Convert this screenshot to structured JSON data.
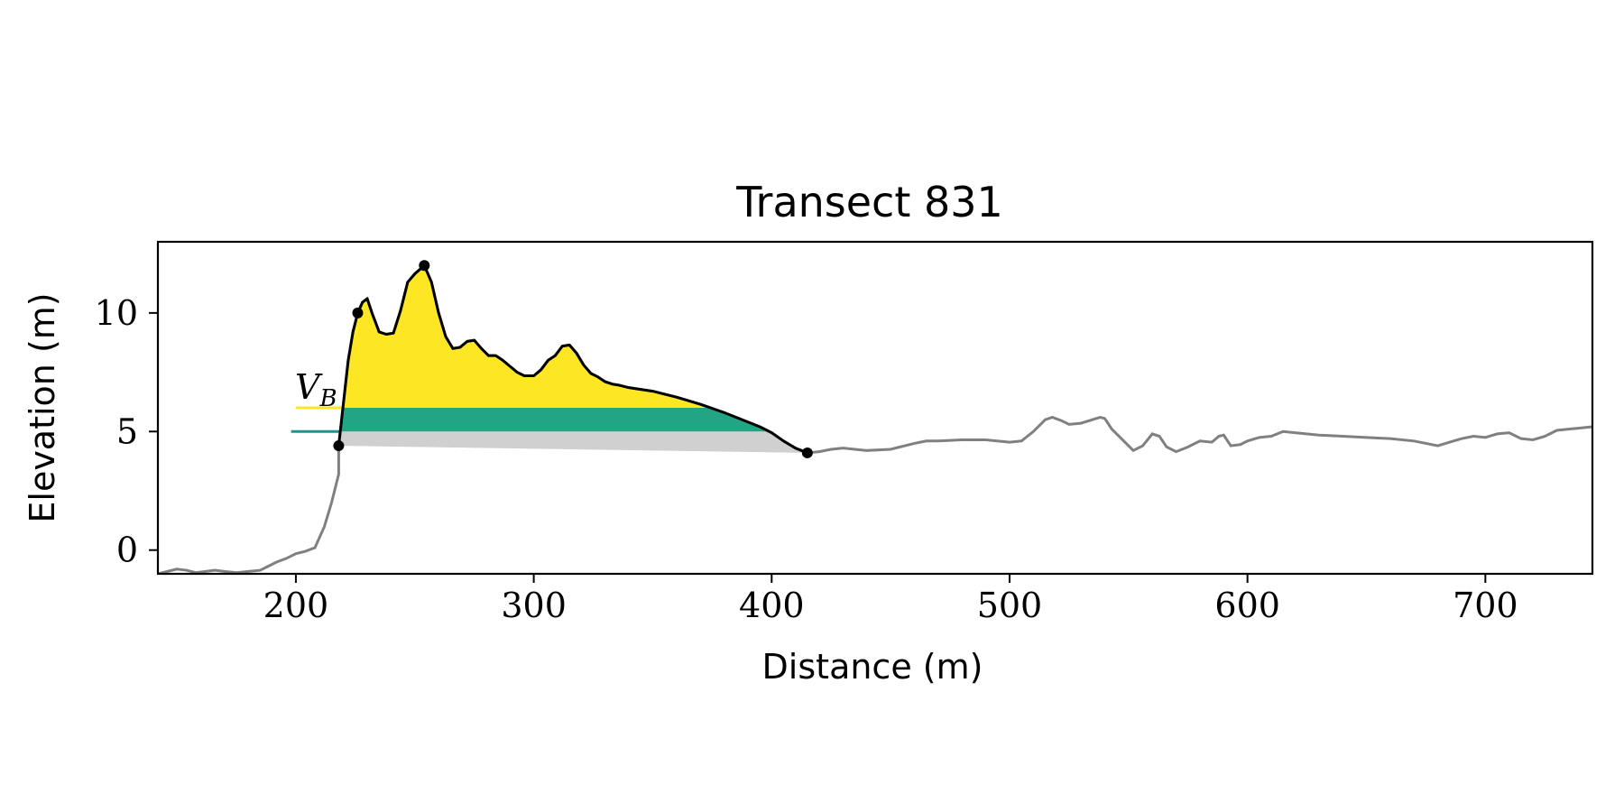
{
  "chart_data": {
    "type": "area",
    "title": "Transect 831",
    "xlabel": "Distance (m)",
    "ylabel": "Elevation (m)",
    "xlim": [
      142,
      745
    ],
    "ylim": [
      -1,
      13
    ],
    "xticks": [
      200,
      300,
      400,
      500,
      600,
      700
    ],
    "yticks": [
      0,
      5,
      10
    ],
    "grid": false,
    "annotation": {
      "main": "V",
      "sub": "B"
    },
    "colors": {
      "profile": "#808080",
      "dune": "#000000",
      "volume_above_6m": "#fde725",
      "volume_5_to_6m": "#21a585",
      "volume_below_5m": "#d0d0d0",
      "line_6m": "#fde725",
      "line_5m": "#1f968b"
    },
    "reference_levels": [
      {
        "elevation": 6.0,
        "x_start": 200
      },
      {
        "elevation": 5.0,
        "x_start": 198
      }
    ],
    "key_points": [
      {
        "x": 218,
        "y": 4.4
      },
      {
        "x": 226,
        "y": 10.0
      },
      {
        "x": 254,
        "y": 12.0
      },
      {
        "x": 415,
        "y": 4.1
      }
    ],
    "profile": {
      "x": [
        142,
        146,
        150,
        154,
        158,
        162,
        166,
        170,
        175,
        180,
        185,
        188,
        192,
        196,
        200,
        204,
        208,
        212,
        215,
        218
      ],
      "y": [
        -1.0,
        -0.9,
        -0.8,
        -0.85,
        -0.95,
        -0.9,
        -0.85,
        -0.9,
        -0.95,
        -0.9,
        -0.85,
        -0.7,
        -0.5,
        -0.35,
        -0.15,
        -0.05,
        0.1,
        1.0,
        2.0,
        3.2
      ]
    },
    "profile_after": {
      "x": [
        415,
        420,
        425,
        430,
        440,
        450,
        460,
        465,
        470,
        480,
        490,
        500,
        505,
        510,
        515,
        518,
        522,
        525,
        530,
        538,
        540,
        543,
        548,
        552,
        556,
        560,
        563,
        566,
        570,
        575,
        580,
        585,
        588,
        590,
        593,
        597,
        600,
        605,
        610,
        615,
        620,
        630,
        640,
        650,
        660,
        670,
        675,
        680,
        685,
        690,
        695,
        700,
        705,
        710,
        715,
        720,
        725,
        730,
        735,
        740,
        745
      ],
      "y": [
        4.1,
        4.15,
        4.25,
        4.3,
        4.2,
        4.25,
        4.5,
        4.6,
        4.6,
        4.65,
        4.65,
        4.55,
        4.6,
        5.0,
        5.5,
        5.6,
        5.45,
        5.3,
        5.35,
        5.6,
        5.55,
        5.1,
        4.6,
        4.2,
        4.4,
        4.9,
        4.8,
        4.35,
        4.15,
        4.35,
        4.6,
        4.55,
        4.8,
        4.85,
        4.4,
        4.45,
        4.6,
        4.75,
        4.8,
        5.0,
        4.95,
        4.85,
        4.8,
        4.75,
        4.7,
        4.6,
        4.5,
        4.4,
        4.55,
        4.7,
        4.8,
        4.75,
        4.9,
        4.95,
        4.7,
        4.65,
        4.8,
        5.05,
        5.1,
        5.15,
        5.2
      ]
    },
    "dune": {
      "x": [
        218,
        220,
        222,
        224,
        226,
        228,
        230,
        232,
        235,
        238,
        241,
        244,
        247,
        250,
        254,
        257,
        260,
        263,
        266,
        269,
        272,
        275,
        278,
        281,
        284,
        287,
        290,
        293,
        296,
        300,
        303,
        306,
        309,
        312,
        315,
        318,
        321,
        324,
        327,
        330,
        333,
        336,
        340,
        350,
        360,
        370,
        380,
        390,
        395,
        400,
        405,
        410,
        415
      ],
      "y": [
        4.4,
        6.2,
        8.0,
        9.2,
        10.0,
        10.45,
        10.6,
        10.0,
        9.2,
        9.1,
        9.15,
        10.1,
        11.3,
        11.65,
        12.0,
        11.3,
        10.0,
        9.0,
        8.5,
        8.55,
        8.8,
        8.85,
        8.5,
        8.2,
        8.2,
        8.0,
        7.75,
        7.5,
        7.35,
        7.35,
        7.6,
        8.0,
        8.2,
        8.6,
        8.65,
        8.3,
        7.8,
        7.45,
        7.3,
        7.1,
        7.0,
        6.95,
        6.85,
        6.7,
        6.45,
        6.15,
        5.8,
        5.4,
        5.2,
        4.95,
        4.6,
        4.3,
        4.1
      ]
    },
    "base_line": {
      "x": [
        218,
        415
      ],
      "y": [
        4.4,
        4.1
      ]
    }
  }
}
